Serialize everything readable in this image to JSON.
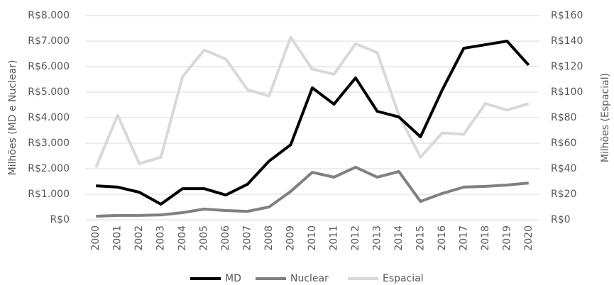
{
  "chart_data": {
    "type": "line",
    "y_label": "Milhões (MD e Nuclear)",
    "y2_label": "Milhões (Espacial)",
    "categories": [
      "2000",
      "2001",
      "2002",
      "2003",
      "2004",
      "2005",
      "2006",
      "2007",
      "2008",
      "2009",
      "2010",
      "2011",
      "2012",
      "2013",
      "2014",
      "2015",
      "2016",
      "2017",
      "2018",
      "2019",
      "2020"
    ],
    "series": [
      {
        "name": "MD",
        "color": "#000000",
        "values": [
          1330,
          1280,
          1080,
          610,
          1220,
          1220,
          970,
          1390,
          2300,
          2940,
          5170,
          4530,
          5560,
          4250,
          4030,
          3250,
          5080,
          6720,
          6860,
          7000,
          6060
        ]
      },
      {
        "name": "Nuclear",
        "color": "#808080",
        "values": [
          140,
          170,
          170,
          190,
          280,
          420,
          360,
          330,
          500,
          1110,
          1860,
          1670,
          2060,
          1670,
          1890,
          720,
          1030,
          1280,
          1310,
          1360,
          1440
        ]
      },
      {
        "name": "Espacial",
        "color": "#d9d9d9",
        "axis": "y2",
        "values": [
          41,
          82,
          44,
          49,
          112,
          133,
          126,
          102,
          97,
          143,
          118,
          114,
          138,
          131,
          82,
          49,
          68,
          67,
          91,
          86,
          91
        ]
      }
    ],
    "ylim": [
      0,
      8000
    ],
    "yticks": [
      {
        "value": 0,
        "label": "R$0"
      },
      {
        "value": 1000,
        "label": "R$1.000"
      },
      {
        "value": 2000,
        "label": "R$2.000"
      },
      {
        "value": 3000,
        "label": "R$3.000"
      },
      {
        "value": 4000,
        "label": "R$4.000"
      },
      {
        "value": 5000,
        "label": "R$5.000"
      },
      {
        "value": 6000,
        "label": "R$6.000"
      },
      {
        "value": 7000,
        "label": "R$7.000"
      },
      {
        "value": 8000,
        "label": "R$8.000"
      }
    ],
    "y2lim": [
      0,
      160
    ],
    "y2ticks": [
      {
        "value": 0,
        "label": "R$0"
      },
      {
        "value": 20,
        "label": "R$20"
      },
      {
        "value": 40,
        "label": "R$40"
      },
      {
        "value": 60,
        "label": "R$60"
      },
      {
        "value": 80,
        "label": "R$80"
      },
      {
        "value": 100,
        "label": "R$100"
      },
      {
        "value": 120,
        "label": "R$120"
      },
      {
        "value": 140,
        "label": "R$140"
      },
      {
        "value": 160,
        "label": "R$160"
      }
    ],
    "grid": true,
    "legend": "bottom"
  }
}
